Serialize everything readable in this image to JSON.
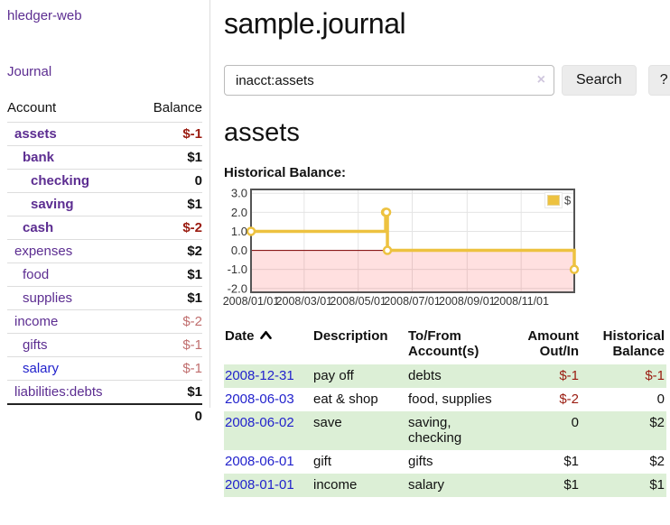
{
  "app": {
    "title": "hledger-web"
  },
  "sidebar": {
    "journal_link": "Journal",
    "accounts_header": {
      "account": "Account",
      "balance": "Balance"
    },
    "accounts": [
      {
        "name": "assets",
        "balance": "$-1",
        "depth": 0,
        "bold": true,
        "balance_style": "neg-strong"
      },
      {
        "name": "bank",
        "balance": "$1",
        "depth": 1,
        "bold": true,
        "balance_style": "pos"
      },
      {
        "name": "checking",
        "balance": "0",
        "depth": 2,
        "bold": true,
        "balance_style": "pos"
      },
      {
        "name": "saving",
        "balance": "$1",
        "depth": 2,
        "bold": true,
        "balance_style": "pos"
      },
      {
        "name": "cash",
        "balance": "$-2",
        "depth": 1,
        "bold": true,
        "balance_style": "neg-strong"
      },
      {
        "name": "expenses",
        "balance": "$2",
        "depth": 0,
        "bold": false,
        "balance_style": "pos"
      },
      {
        "name": "food",
        "balance": "$1",
        "depth": 1,
        "bold": false,
        "balance_style": "pos"
      },
      {
        "name": "supplies",
        "balance": "$1",
        "depth": 1,
        "bold": false,
        "balance_style": "pos"
      },
      {
        "name": "income",
        "balance": "$-2",
        "depth": 0,
        "bold": false,
        "balance_style": "neg-soft"
      },
      {
        "name": "gifts",
        "balance": "$-1",
        "depth": 1,
        "bold": false,
        "balance_style": "neg-soft"
      },
      {
        "name": "salary",
        "balance": "$-1",
        "depth": 1,
        "bold": false,
        "balance_style": "neg-soft",
        "link_color": "blue"
      },
      {
        "name": "liabilities:debts",
        "balance": "$1",
        "depth": 0,
        "bold": false,
        "balance_style": "pos"
      }
    ],
    "total_balance": "0"
  },
  "header": {
    "title": "sample.journal"
  },
  "search": {
    "value": "inacct:assets",
    "clear_icon": "×",
    "search_button": "Search",
    "help_button": "?"
  },
  "register": {
    "heading": "assets",
    "chart_title": "Historical Balance:",
    "table": {
      "headers": [
        "Date",
        "Description",
        "To/From Account(s)",
        "Amount Out/In",
        "Historical Balance"
      ],
      "sort_column": "Date",
      "sort_direction": "ascending",
      "rows": [
        {
          "date": "2008-12-31",
          "description": "pay off",
          "accounts": "debts",
          "amount": "$-1",
          "balance": "$-1",
          "highlight": true
        },
        {
          "date": "2008-06-03",
          "description": "eat & shop",
          "accounts": "food, supplies",
          "amount": "$-2",
          "balance": "0",
          "highlight": false
        },
        {
          "date": "2008-06-02",
          "description": "save",
          "accounts": "saving, checking",
          "amount": "0",
          "balance": "$2",
          "highlight": true
        },
        {
          "date": "2008-06-01",
          "description": "gift",
          "accounts": "gifts",
          "amount": "$1",
          "balance": "$2",
          "highlight": false
        },
        {
          "date": "2008-01-01",
          "description": "income",
          "accounts": "salary",
          "amount": "$1",
          "balance": "$1",
          "highlight": true
        }
      ]
    }
  },
  "chart_data": {
    "type": "line",
    "title": "Historical Balance",
    "step": true,
    "series": [
      {
        "name": "$",
        "color": "#edc240",
        "points": [
          {
            "date": "2008-01-01",
            "day": 0,
            "value": 1
          },
          {
            "date": "2008-06-01",
            "day": 152,
            "value": 2
          },
          {
            "date": "2008-06-02",
            "day": 153,
            "value": 2
          },
          {
            "date": "2008-06-03",
            "day": 154,
            "value": 0
          },
          {
            "date": "2008-12-31",
            "day": 365,
            "value": -1
          }
        ]
      }
    ],
    "x_ticks": [
      {
        "label": "2008/01/01",
        "day": 0
      },
      {
        "label": "2008/03/01",
        "day": 60
      },
      {
        "label": "2008/05/01",
        "day": 121
      },
      {
        "label": "2008/07/01",
        "day": 182
      },
      {
        "label": "2008/09/01",
        "day": 244
      },
      {
        "label": "2008/11/01",
        "day": 305
      }
    ],
    "y_ticks": [
      "3.0",
      "2.0",
      "1.0",
      "0.0",
      "-1.0",
      "-2.0"
    ],
    "ylim": [
      -2.2,
      3.2
    ],
    "xlim_days": [
      0,
      365
    ],
    "grid": true,
    "legend": {
      "label": "$",
      "position": "top-right"
    },
    "negative_region": {
      "below": 0,
      "fill": "rgba(255,0,0,0.12)",
      "zero_line_color": "#8b1a1a"
    }
  },
  "colors": {
    "link_purple": "#5c2d91",
    "link_blue": "#2222cc",
    "negative_strong": "#9a1b10",
    "negative_soft": "#c06e6e",
    "row_highlight_green": "#dcefd6",
    "chart_line_gold": "#edc240",
    "chart_border": "#545454",
    "grid_line": "#e4e4e4",
    "button_bg": "#ececec"
  }
}
